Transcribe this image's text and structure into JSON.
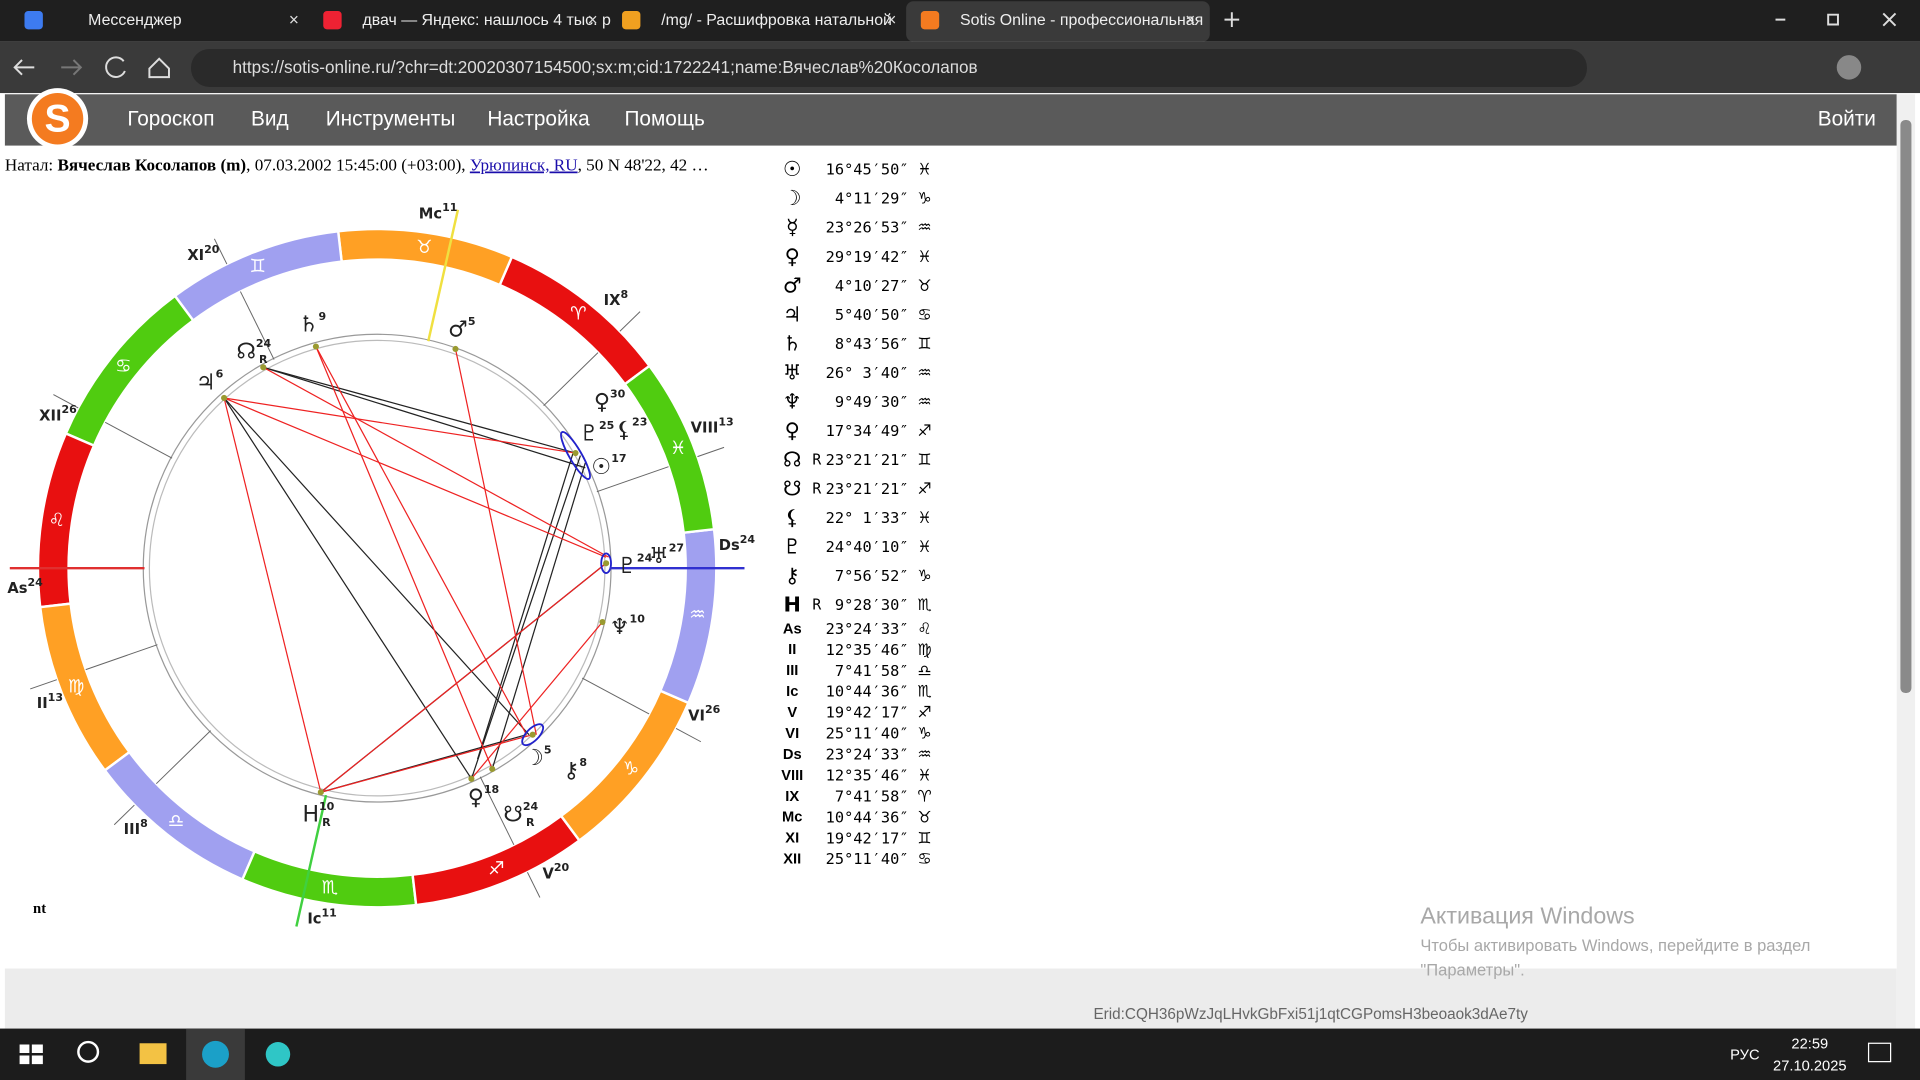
{
  "browser": {
    "tabs": [
      "Мессенджер",
      "двач — Яндекс: нашлось 4 тыс. р",
      "/mg/ - Расшифровка натальной",
      "Sotis Online - профессиональная"
    ],
    "url": "https://sotis-online.ru/?chr=dt:20020307154500;sx:m;cid:1722241;name:Вячеслав%20Косолапов"
  },
  "site": {
    "menu": [
      "Гороскоп",
      "Вид",
      "Инструменты",
      "Настройка",
      "Помощь"
    ],
    "login": "Войти"
  },
  "natal": {
    "prefix": "Натал: ",
    "name": "Вячеслав Косолапов (m)",
    "details1": ", 07.03.2002 15:45:00 (+03:00), ",
    "city": "Урюпинск, RU",
    "details2": ", 50 N 48'22, 42 …"
  },
  "wheel": {
    "signs": [
      "♈",
      "♉",
      "♊",
      "♋",
      "♌",
      "♍",
      "♎",
      "♏",
      "♐",
      "♑",
      "♒",
      "♓"
    ],
    "houses": [
      {
        "label": "Mc",
        "degree": "11"
      },
      {
        "label": "XI",
        "degree": "20"
      },
      {
        "label": "IX",
        "degree": "8"
      },
      {
        "label": "XII",
        "degree": "26"
      },
      {
        "label": "VIII",
        "degree": "13"
      },
      {
        "label": "As",
        "degree": "24"
      },
      {
        "label": "Ds",
        "degree": "24"
      },
      {
        "label": "II",
        "degree": "13"
      },
      {
        "label": "VI",
        "degree": "26"
      },
      {
        "label": "III",
        "degree": "8"
      },
      {
        "label": "V",
        "degree": "20"
      },
      {
        "label": "Ic",
        "degree": "11"
      }
    ],
    "planets": [
      {
        "glyph": "♄",
        "degree": "9"
      },
      {
        "glyph": "☊",
        "degree": "24",
        "retro": "R"
      },
      {
        "glyph": "♃",
        "degree": "6"
      },
      {
        "glyph": "♂",
        "degree": "5"
      },
      {
        "glyph": "♀",
        "degree": "30"
      },
      {
        "glyph": "♇",
        "degree": "25"
      },
      {
        "glyph": "⚸",
        "degree": "23"
      },
      {
        "glyph": "☉",
        "degree": "17"
      },
      {
        "glyph": "♅",
        "degree": "27"
      },
      {
        "glyph": "♇",
        "degree": "24"
      },
      {
        "glyph": "♆",
        "degree": "10"
      },
      {
        "glyph": "☽",
        "degree": "5"
      },
      {
        "glyph": "⚷",
        "degree": "8"
      },
      {
        "glyph": "♀",
        "degree": "18"
      },
      {
        "glyph": "☋",
        "degree": "24",
        "retro": "R"
      },
      {
        "glyph": "H",
        "degree": "10",
        "retro": "R"
      }
    ],
    "corner": "nt"
  },
  "positions": [
    {
      "glyph": "☉",
      "value": "16°45′50″",
      "sign": "♓"
    },
    {
      "glyph": "☽",
      "value": "4°11′29″",
      "sign": "♑"
    },
    {
      "glyph": "☿",
      "value": "23°26′53″",
      "sign": "♒"
    },
    {
      "glyph": "♀",
      "value": "29°19′42″",
      "sign": "♓"
    },
    {
      "glyph": "♂",
      "value": "4°10′27″",
      "sign": "♉"
    },
    {
      "glyph": "♃",
      "value": "5°40′50″",
      "sign": "♋"
    },
    {
      "glyph": "♄",
      "value": "8°43′56″",
      "sign": "♊"
    },
    {
      "glyph": "♅",
      "value": "26° 3′40″",
      "sign": "♒"
    },
    {
      "glyph": "♆",
      "value": "9°49′30″",
      "sign": "♒"
    },
    {
      "glyph": "♀",
      "value": "17°34′49″",
      "sign": "♐"
    },
    {
      "glyph": "☊",
      "retro": "R",
      "value": "23°21′21″",
      "sign": "♊"
    },
    {
      "glyph": "☋",
      "retro": "R",
      "value": "23°21′21″",
      "sign": "♐"
    },
    {
      "glyph": "⚸",
      "value": "22° 1′33″",
      "sign": "♓"
    },
    {
      "glyph": "♇",
      "value": "24°40′10″",
      "sign": "♓"
    },
    {
      "glyph": "⚷",
      "value": "7°56′52″",
      "sign": "♑"
    },
    {
      "glyph": "H",
      "retro": "R",
      "value": "9°28′30″",
      "sign": "♏"
    }
  ],
  "houses": [
    {
      "label": "As",
      "value": "23°24′33″",
      "sign": "♌"
    },
    {
      "label": "II",
      "value": "12°35′46″",
      "sign": "♍"
    },
    {
      "label": "III",
      "value": "7°41′58″",
      "sign": "♎"
    },
    {
      "label": "Ic",
      "value": "10°44′36″",
      "sign": "♏"
    },
    {
      "label": "V",
      "value": "19°42′17″",
      "sign": "♐"
    },
    {
      "label": "VI",
      "value": "25°11′40″",
      "sign": "♑"
    },
    {
      "label": "Ds",
      "value": "23°24′33″",
      "sign": "♒"
    },
    {
      "label": "VIII",
      "value": "12°35′46″",
      "sign": "♓"
    },
    {
      "label": "IX",
      "value": "7°41′58″",
      "sign": "♈"
    },
    {
      "label": "Mc",
      "value": "10°44′36″",
      "sign": "♉"
    },
    {
      "label": "XI",
      "value": "19°42′17″",
      "sign": "♊"
    },
    {
      "label": "XII",
      "value": "25°11′40″",
      "sign": "♋"
    }
  ],
  "watermark": {
    "title": "Активация Windows",
    "line1": "Чтобы активировать Windows, перейдите в раздел",
    "line2": "\"Параметры\"."
  },
  "erid": "Erid:CQH36pWzJqLHvkGbFxi51j1qtCGPomsH3beoaok3dAe7ty",
  "taskbar": {
    "lang": "РУС",
    "time": "22:59",
    "date": "27.10.2025"
  }
}
